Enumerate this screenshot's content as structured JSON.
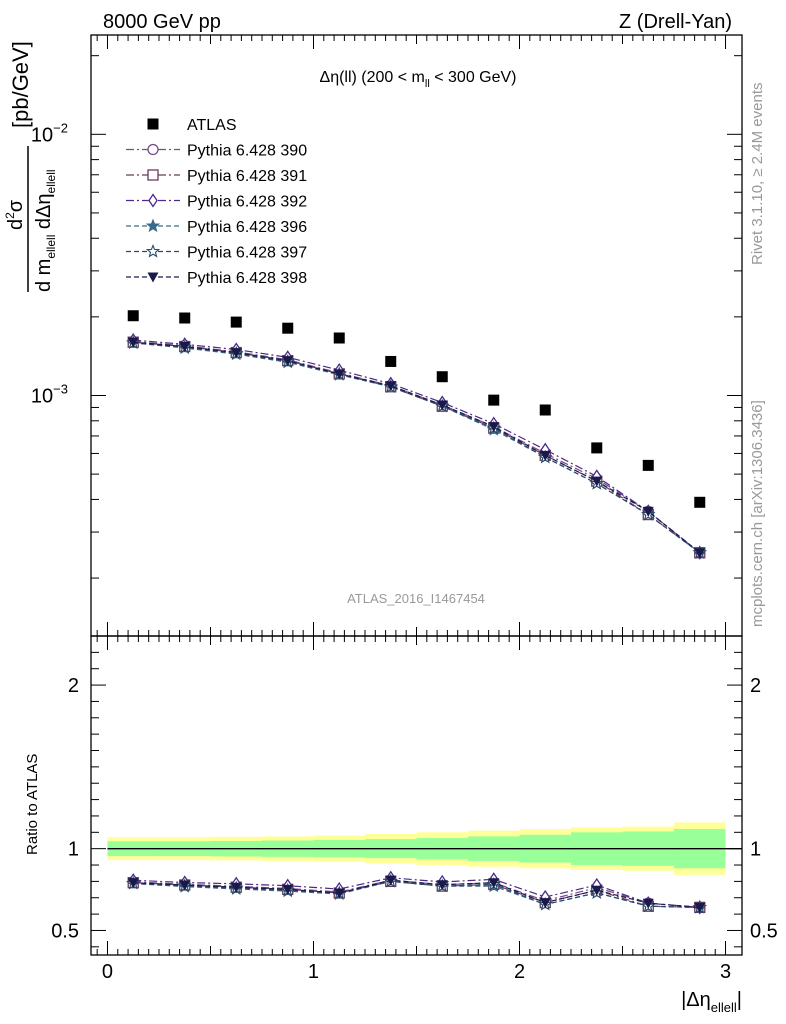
{
  "header": {
    "energy_label": "8000 GeV pp",
    "process_label": "Z (Drell-Yan)"
  },
  "side_labels": {
    "rivet": "Rivet 3.1.10, ≥ 2.4M events",
    "mcplots": "mcplots.cern.ch [arXiv:1306.3436]"
  },
  "chart_data": {
    "type": "scatter",
    "title": "Δη(ll) (200 < m_ll < 300 GeV)",
    "title_parts": {
      "main": "Δη(ll) (200 < m",
      "sub": "ll",
      "tail": " < 300 GeV)"
    },
    "watermark": "ATLAS_2016_I1467454",
    "xlabel": {
      "main": "|Δη",
      "sub": "ellell",
      "tail": "|"
    },
    "ylabel": {
      "unit": "[pb/GeV]",
      "num_d": "d",
      "num_sup": "2",
      "num_sigma": "σ",
      "den_d1": "d m",
      "den_sub1": "ellell",
      "den_d2": " dΔη",
      "den_sub2": "ellell"
    },
    "ratio_ylabel": "Ratio to ATLAS",
    "x": [
      0.125,
      0.375,
      0.625,
      0.875,
      1.125,
      1.375,
      1.625,
      1.875,
      2.125,
      2.375,
      2.625,
      2.875
    ],
    "xlim": [
      -0.08,
      3.08
    ],
    "ylim": [
      0.00012,
      0.024
    ],
    "yscale": "log",
    "ratio_ylim": [
      0.35,
      2.3
    ],
    "x_ticks": [
      "0",
      "1",
      "2",
      "3"
    ],
    "y_ticks": [
      {
        "value": 0.001,
        "base": "10",
        "exp": "−3"
      },
      {
        "value": 0.01,
        "base": "10",
        "exp": "−2"
      }
    ],
    "ratio_ticks": [
      "0.5",
      "1",
      "2"
    ],
    "data": {
      "name": "ATLAS",
      "values": [
        0.00202,
        0.00198,
        0.00191,
        0.00181,
        0.00166,
        0.00135,
        0.00118,
        0.00096,
        0.00088,
        0.00063,
        0.00054,
        0.00039
      ],
      "band_inner_rel": [
        0.045,
        0.045,
        0.047,
        0.05,
        0.053,
        0.058,
        0.065,
        0.075,
        0.085,
        0.1,
        0.105,
        0.12
      ],
      "band_outer_rel": [
        0.07,
        0.07,
        0.072,
        0.075,
        0.08,
        0.09,
        0.1,
        0.11,
        0.12,
        0.13,
        0.135,
        0.16
      ]
    },
    "series": [
      {
        "name": "Pythia 6.428 390",
        "marker": "circle-open",
        "color": "#7a4a8a",
        "dash": "8,3,2,3",
        "values": [
          0.00161,
          0.00155,
          0.00147,
          0.00137,
          0.00122,
          0.00109,
          0.00092,
          0.00076,
          0.0006,
          0.00048,
          0.00036,
          0.00025
        ]
      },
      {
        "name": "Pythia 6.428 391",
        "marker": "square-open",
        "color": "#6a3a5a",
        "dash": "8,3,2,3",
        "values": [
          0.0016,
          0.00154,
          0.00146,
          0.00136,
          0.00121,
          0.00108,
          0.00091,
          0.00075,
          0.00059,
          0.00047,
          0.00035,
          0.00025
        ]
      },
      {
        "name": "Pythia 6.428 392",
        "marker": "diamond-open",
        "color": "#4a2a8a",
        "dash": "8,3,2,3",
        "values": [
          0.00163,
          0.00157,
          0.0015,
          0.0014,
          0.00125,
          0.00111,
          0.00094,
          0.00078,
          0.00062,
          0.00049,
          0.00036,
          0.00025
        ]
      },
      {
        "name": "Pythia 6.428 396",
        "marker": "star-filled",
        "color": "#3a6a8a",
        "dash": "5,3",
        "values": [
          0.00159,
          0.00152,
          0.00144,
          0.00134,
          0.0012,
          0.00108,
          0.00091,
          0.00074,
          0.00058,
          0.00046,
          0.00035,
          0.00025
        ]
      },
      {
        "name": "Pythia 6.428 397",
        "marker": "star-open",
        "color": "#2a4a6a",
        "dash": "5,3",
        "values": [
          0.00159,
          0.00153,
          0.00145,
          0.00135,
          0.00121,
          0.00108,
          0.00091,
          0.00075,
          0.00058,
          0.00046,
          0.00035,
          0.00025
        ]
      },
      {
        "name": "Pythia 6.428 398",
        "marker": "triangle-down-filled",
        "color": "#1a1a4a",
        "dash": "5,3",
        "values": [
          0.0016,
          0.00154,
          0.00146,
          0.00136,
          0.00121,
          0.00109,
          0.00092,
          0.00076,
          0.00059,
          0.00047,
          0.00036,
          0.00025
        ]
      }
    ]
  }
}
